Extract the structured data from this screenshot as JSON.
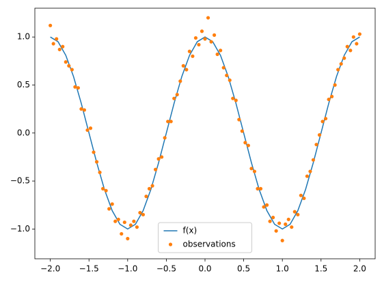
{
  "chart_data": {
    "type": "line",
    "xlim": [
      -2.2,
      2.2
    ],
    "ylim": [
      -1.31,
      1.3
    ],
    "xticks": [
      {
        "value": -2,
        "label": "−2.0"
      },
      {
        "value": -1.5,
        "label": "−1.5"
      },
      {
        "value": -1,
        "label": "−1.0"
      },
      {
        "value": -0.5,
        "label": "−0.5"
      },
      {
        "value": 0,
        "label": "0.0"
      },
      {
        "value": 0.5,
        "label": "0.5"
      },
      {
        "value": 1,
        "label": "1.0"
      },
      {
        "value": 1.5,
        "label": "1.5"
      },
      {
        "value": 2,
        "label": "2.0"
      }
    ],
    "yticks": [
      {
        "value": -1,
        "label": "−1.0"
      },
      {
        "value": -0.5,
        "label": "−0.5"
      },
      {
        "value": 0,
        "label": "0.0"
      },
      {
        "value": 0.5,
        "label": "0.5"
      },
      {
        "value": 1,
        "label": "1.0"
      }
    ],
    "legend": "lower center",
    "series": [
      {
        "name": "f(x)",
        "type": "line",
        "color": "#1f77b4",
        "x": [
          -2.0,
          -1.9,
          -1.8,
          -1.7,
          -1.6,
          -1.5,
          -1.4,
          -1.3,
          -1.2,
          -1.1,
          -1.0,
          -0.9,
          -0.8,
          -0.7,
          -0.6,
          -0.5,
          -0.4,
          -0.3,
          -0.2,
          -0.1,
          0.0,
          0.1,
          0.2,
          0.3,
          0.4,
          0.5,
          0.6,
          0.7,
          0.8,
          0.9,
          1.0,
          1.1,
          1.2,
          1.3,
          1.4,
          1.5,
          1.6,
          1.7,
          1.8,
          1.9,
          2.0
        ],
        "values": [
          1,
          0.951,
          0.809,
          0.588,
          0.309,
          0,
          -0.309,
          -0.588,
          -0.809,
          -0.951,
          -1,
          -0.951,
          -0.809,
          -0.588,
          -0.309,
          0,
          0.309,
          0.588,
          0.809,
          0.951,
          1,
          0.951,
          0.809,
          0.588,
          0.309,
          0,
          -0.309,
          -0.588,
          -0.809,
          -0.951,
          -1,
          -0.951,
          -0.809,
          -0.588,
          -0.309,
          0,
          0.309,
          0.588,
          0.809,
          0.951,
          1
        ]
      },
      {
        "name": "observations",
        "type": "scatter",
        "color": "#ff7f0e",
        "x": [
          -2.0,
          -1.96,
          -1.92,
          -1.88,
          -1.84,
          -1.8,
          -1.76,
          -1.72,
          -1.68,
          -1.64,
          -1.6,
          -1.56,
          -1.52,
          -1.48,
          -1.44,
          -1.4,
          -1.36,
          -1.32,
          -1.28,
          -1.24,
          -1.2,
          -1.16,
          -1.12,
          -1.08,
          -1.04,
          -1.0,
          -0.96,
          -0.92,
          -0.88,
          -0.84,
          -0.8,
          -0.76,
          -0.72,
          -0.68,
          -0.64,
          -0.6,
          -0.56,
          -0.52,
          -0.48,
          -0.44,
          -0.4,
          -0.36,
          -0.32,
          -0.28,
          -0.24,
          -0.2,
          -0.16,
          -0.12,
          -0.08,
          -0.04,
          0.0,
          0.04,
          0.08,
          0.12,
          0.16,
          0.2,
          0.24,
          0.28,
          0.32,
          0.36,
          0.4,
          0.44,
          0.48,
          0.52,
          0.56,
          0.6,
          0.64,
          0.68,
          0.72,
          0.76,
          0.8,
          0.84,
          0.88,
          0.92,
          0.96,
          1.0,
          1.04,
          1.08,
          1.12,
          1.16,
          1.2,
          1.24,
          1.28,
          1.32,
          1.36,
          1.4,
          1.44,
          1.48,
          1.52,
          1.56,
          1.6,
          1.64,
          1.68,
          1.72,
          1.76,
          1.8,
          1.84,
          1.88,
          1.92,
          1.96,
          2.0
        ],
        "values": [
          1.12,
          0.93,
          0.98,
          0.87,
          0.9,
          0.74,
          0.7,
          0.66,
          0.48,
          0.47,
          0.25,
          0.24,
          0.03,
          0.05,
          -0.2,
          -0.3,
          -0.41,
          -0.58,
          -0.6,
          -0.79,
          -0.74,
          -0.92,
          -0.9,
          -1.05,
          -0.93,
          -1.1,
          -0.96,
          -0.92,
          -0.98,
          -0.83,
          -0.85,
          -0.66,
          -0.58,
          -0.55,
          -0.38,
          -0.27,
          -0.25,
          -0.05,
          0.12,
          0.12,
          0.36,
          0.4,
          0.54,
          0.7,
          0.66,
          0.85,
          0.8,
          0.99,
          0.92,
          1.06,
          0.98,
          1.2,
          0.95,
          1.02,
          0.82,
          0.86,
          0.68,
          0.6,
          0.55,
          0.36,
          0.34,
          0.14,
          0.02,
          -0.1,
          -0.13,
          -0.37,
          -0.4,
          -0.58,
          -0.58,
          -0.77,
          -0.75,
          -0.92,
          -0.88,
          -1.02,
          -0.94,
          -1.12,
          -0.95,
          -0.9,
          -0.98,
          -0.82,
          -0.85,
          -0.65,
          -0.68,
          -0.45,
          -0.4,
          -0.28,
          -0.12,
          -0.02,
          0.12,
          0.15,
          0.35,
          0.38,
          0.5,
          0.66,
          0.72,
          0.78,
          0.9,
          0.86,
          1.0,
          0.93,
          1.03
        ]
      }
    ]
  }
}
